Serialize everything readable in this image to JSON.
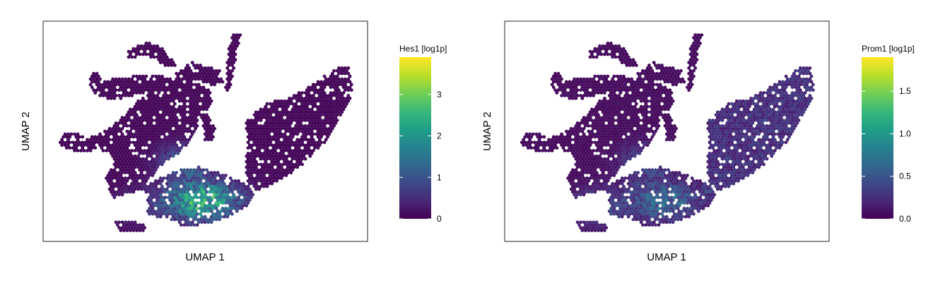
{
  "chart_data": [
    {
      "type": "hexbin-embedding",
      "xlabel": "UMAP 1",
      "ylabel": "UMAP 2",
      "colorbar": {
        "title": "Hes1 [log1p]",
        "ticks": [
          "0",
          "1",
          "2",
          "3"
        ],
        "range": [
          0,
          3.9
        ],
        "colormap": "viridis"
      },
      "x_ticks_shown": false,
      "y_ticks_shown": false,
      "regions": [
        {
          "name": "left lobe",
          "value": 0.05
        },
        {
          "name": "upper branches",
          "value": 0.05
        },
        {
          "name": "right lobe",
          "value": 0.05
        },
        {
          "name": "lower central bridge",
          "value": 2.3
        },
        {
          "name": "center junction",
          "value": 1.4
        },
        {
          "name": "lower left bottom",
          "value": 0.6
        }
      ]
    },
    {
      "type": "hexbin-embedding",
      "xlabel": "UMAP 1",
      "ylabel": "UMAP 2",
      "colorbar": {
        "title": "Prom1 [log1p]",
        "ticks": [
          "0.0",
          "0.5",
          "1.0",
          "1.5"
        ],
        "range": [
          0,
          1.9
        ],
        "colormap": "viridis"
      },
      "x_ticks_shown": false,
      "y_ticks_shown": false,
      "regions": [
        {
          "name": "left lobe",
          "value": 0.05
        },
        {
          "name": "upper branches",
          "value": 0.05
        },
        {
          "name": "right lobe",
          "value": 0.25
        },
        {
          "name": "lower central bridge",
          "value": 0.6
        },
        {
          "name": "center junction",
          "value": 0.5
        },
        {
          "name": "lower left bottom",
          "value": 0.6
        }
      ]
    }
  ],
  "colors": {
    "viridis": [
      "#440154",
      "#482878",
      "#3e4989",
      "#31688e",
      "#26828e",
      "#1f9e89",
      "#35b779",
      "#6ece58",
      "#b5de2b",
      "#fde725"
    ],
    "frame": "#222222",
    "text": "#000000"
  }
}
